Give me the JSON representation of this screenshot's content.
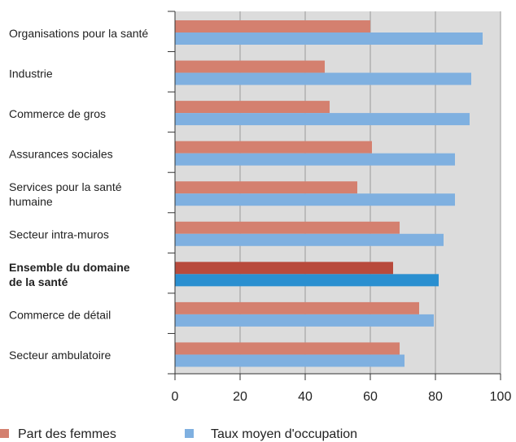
{
  "chart_data": {
    "type": "bar",
    "orientation": "horizontal",
    "categories": [
      [
        "Organisations pour la santé"
      ],
      [
        "Industrie"
      ],
      [
        "Commerce de gros"
      ],
      [
        "Assurances sociales"
      ],
      [
        "Services pour la santé",
        "humaine"
      ],
      [
        "Secteur intra-muros"
      ],
      [
        "Ensemble du domaine",
        "de la santé"
      ],
      [
        "Commerce de détail"
      ],
      [
        "Secteur ambulatoire"
      ]
    ],
    "highlight_index": 6,
    "series": [
      {
        "name": "Part des femmes",
        "color": "#d4806f",
        "highlight_color": "#b84a3c",
        "values": [
          60,
          46,
          47.5,
          60.5,
          56,
          69,
          67,
          75,
          69
        ]
      },
      {
        "name": "Taux moyen d'occupation",
        "color": "#7fb0e0",
        "highlight_color": "#2a8fd0",
        "values": [
          94.5,
          91,
          90.5,
          86,
          86,
          82.5,
          81,
          79.5,
          70.5
        ]
      }
    ],
    "xlim": [
      0,
      100
    ],
    "xticks": [
      "0",
      "20",
      "40",
      "60",
      "80",
      "100"
    ],
    "grid": true,
    "legend_position": "bottom-left",
    "colors": {
      "plot_background": "#dcdcdc",
      "gridline": "#9a9a9a",
      "axis": "#333333"
    }
  }
}
